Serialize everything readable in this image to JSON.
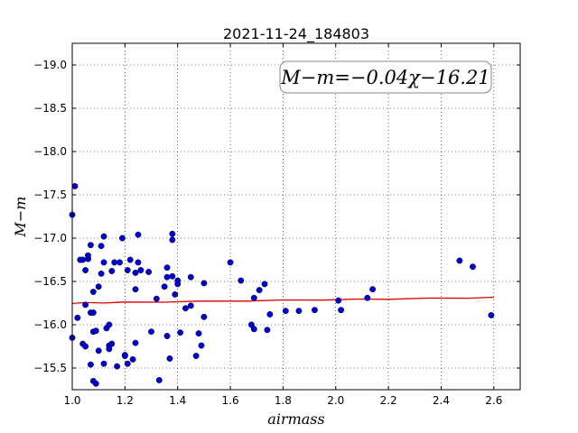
{
  "chart_data": {
    "type": "scatter",
    "title": "2021-11-24_184803",
    "xlabel": "airmass",
    "ylabel": "M−m",
    "xlim": [
      1.0,
      2.7
    ],
    "ylim": [
      -19.25,
      -15.25
    ],
    "y_inverted": true,
    "grid": "dotted",
    "x_ticks": [
      1.0,
      1.2,
      1.4,
      1.6,
      1.8,
      2.0,
      2.2,
      2.4,
      2.6
    ],
    "x_tick_labels": [
      "1.0",
      "1.2",
      "1.4",
      "1.6",
      "1.8",
      "2.0",
      "2.2",
      "2.4",
      "2.6"
    ],
    "y_ticks": [
      -15.5,
      -16.0,
      -16.5,
      -17.0,
      -17.5,
      -18.0,
      -18.5,
      -19.0
    ],
    "y_tick_labels": [
      "−15.5",
      "−16.0",
      "−16.5",
      "−17.0",
      "−17.5",
      "−18.0",
      "−18.5",
      "−19.0"
    ],
    "annotation": "M−m=−0.04χ−16.21",
    "point_color": "#0000cc",
    "fit_color": "#dd0000",
    "points": [
      [
        1.0,
        -15.85
      ],
      [
        1.0,
        -17.27
      ],
      [
        1.01,
        -17.6
      ],
      [
        1.02,
        -16.08
      ],
      [
        1.03,
        -16.75
      ],
      [
        1.04,
        -16.75
      ],
      [
        1.04,
        -15.78
      ],
      [
        1.05,
        -15.75
      ],
      [
        1.05,
        -16.63
      ],
      [
        1.05,
        -16.23
      ],
      [
        1.06,
        -16.76
      ],
      [
        1.06,
        -16.8
      ],
      [
        1.07,
        -16.92
      ],
      [
        1.07,
        -16.14
      ],
      [
        1.07,
        -15.54
      ],
      [
        1.08,
        -15.92
      ],
      [
        1.08,
        -15.35
      ],
      [
        1.08,
        -16.14
      ],
      [
        1.08,
        -16.38
      ],
      [
        1.09,
        -15.93
      ],
      [
        1.09,
        -15.32
      ],
      [
        1.1,
        -16.44
      ],
      [
        1.1,
        -15.7
      ],
      [
        1.11,
        -16.91
      ],
      [
        1.11,
        -16.59
      ],
      [
        1.12,
        -15.55
      ],
      [
        1.12,
        -17.02
      ],
      [
        1.12,
        -16.72
      ],
      [
        1.13,
        -15.96
      ],
      [
        1.14,
        -15.76
      ],
      [
        1.14,
        -16.0
      ],
      [
        1.14,
        -15.72
      ],
      [
        1.15,
        -16.62
      ],
      [
        1.15,
        -15.78
      ],
      [
        1.16,
        -16.72
      ],
      [
        1.17,
        -15.52
      ],
      [
        1.18,
        -16.72
      ],
      [
        1.19,
        -17.0
      ],
      [
        1.2,
        -15.64
      ],
      [
        1.2,
        -15.65
      ],
      [
        1.21,
        -16.63
      ],
      [
        1.21,
        -15.55
      ],
      [
        1.22,
        -16.75
      ],
      [
        1.23,
        -15.6
      ],
      [
        1.24,
        -16.6
      ],
      [
        1.24,
        -15.79
      ],
      [
        1.24,
        -16.41
      ],
      [
        1.25,
        -17.04
      ],
      [
        1.25,
        -16.72
      ],
      [
        1.26,
        -16.63
      ],
      [
        1.29,
        -16.61
      ],
      [
        1.3,
        -15.92
      ],
      [
        1.32,
        -16.3
      ],
      [
        1.33,
        -15.36
      ],
      [
        1.35,
        -16.44
      ],
      [
        1.36,
        -16.55
      ],
      [
        1.36,
        -15.87
      ],
      [
        1.36,
        -16.66
      ],
      [
        1.37,
        -15.61
      ],
      [
        1.38,
        -16.56
      ],
      [
        1.38,
        -16.98
      ],
      [
        1.38,
        -17.05
      ],
      [
        1.39,
        -16.35
      ],
      [
        1.4,
        -16.51
      ],
      [
        1.4,
        -16.47
      ],
      [
        1.41,
        -15.91
      ],
      [
        1.43,
        -16.19
      ],
      [
        1.45,
        -16.22
      ],
      [
        1.45,
        -16.55
      ],
      [
        1.47,
        -15.64
      ],
      [
        1.48,
        -15.9
      ],
      [
        1.49,
        -15.76
      ],
      [
        1.5,
        -16.48
      ],
      [
        1.5,
        -16.09
      ],
      [
        1.6,
        -16.72
      ],
      [
        1.64,
        -16.51
      ],
      [
        1.68,
        -16.0
      ],
      [
        1.69,
        -15.95
      ],
      [
        1.69,
        -16.31
      ],
      [
        1.71,
        -16.4
      ],
      [
        1.73,
        -16.47
      ],
      [
        1.74,
        -15.94
      ],
      [
        1.75,
        -16.12
      ],
      [
        1.81,
        -16.16
      ],
      [
        1.86,
        -16.16
      ],
      [
        1.92,
        -16.17
      ],
      [
        2.01,
        -16.28
      ],
      [
        2.02,
        -16.17
      ],
      [
        2.12,
        -16.31
      ],
      [
        2.14,
        -16.41
      ],
      [
        2.47,
        -16.74
      ],
      [
        2.52,
        -16.67
      ],
      [
        2.59,
        -16.11
      ]
    ],
    "fit_line": {
      "slope": -0.04,
      "intercept": -16.21,
      "x": [
        1.0,
        1.05,
        1.12,
        1.2,
        1.35,
        1.48,
        1.66,
        1.8,
        1.95,
        2.08,
        2.2,
        2.36,
        2.5,
        2.6
      ]
    }
  }
}
